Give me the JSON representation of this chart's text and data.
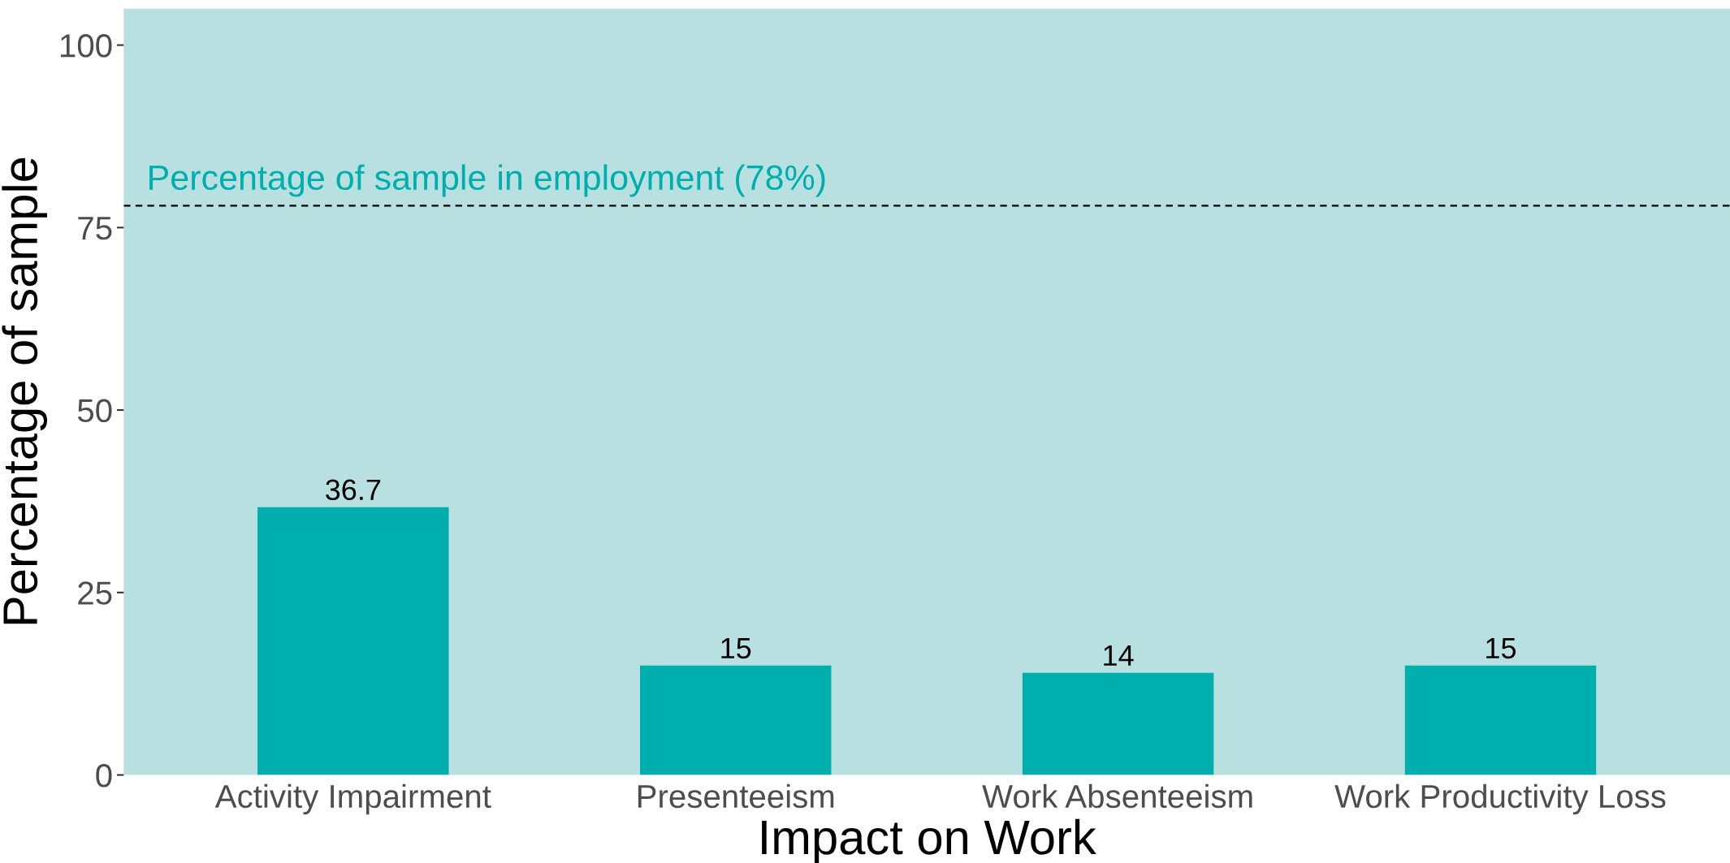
{
  "chart_data": {
    "type": "bar",
    "xlabel": "Impact on Work",
    "ylabel": "Percentage of sample",
    "categories": [
      "Activity Impairment",
      "Presenteeism",
      "Work Absenteeism",
      "Work Productivity Loss"
    ],
    "values": [
      36.7,
      15,
      14,
      15
    ],
    "color": "#00aeae",
    "ylim": [
      0,
      105
    ],
    "yticks": [
      0,
      25,
      50,
      75,
      100
    ],
    "grid": false,
    "data_labels": true,
    "ref_lines": [
      {
        "axis": "y",
        "value": 78,
        "label": "Percentage of sample in employment (78%)",
        "color": "#000000",
        "line_style": "dashed"
      }
    ]
  }
}
